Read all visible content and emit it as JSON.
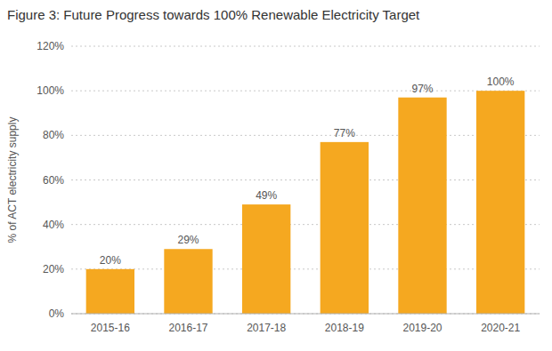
{
  "chart_data": {
    "type": "bar",
    "title": "Figure 3:  Future Progress towards 100% Renewable Electricity Target",
    "categories": [
      "2015-16",
      "2016-17",
      "2017-18",
      "2018-19",
      "2019-20",
      "2020-21"
    ],
    "values": [
      20,
      29,
      49,
      77,
      97,
      100
    ],
    "value_labels": [
      "20%",
      "29%",
      "49%",
      "77%",
      "97%",
      "100%"
    ],
    "data_labels": true,
    "color": "#F5A820",
    "ylabel": "% of ACT electricity supply",
    "ylim": [
      0,
      120
    ],
    "yticks": [
      {
        "value": 0,
        "label": "0%"
      },
      {
        "value": 20,
        "label": "20%"
      },
      {
        "value": 40,
        "label": "40%"
      },
      {
        "value": 60,
        "label": "60%"
      },
      {
        "value": 80,
        "label": "80%"
      },
      {
        "value": 100,
        "label": "100%"
      },
      {
        "value": 120,
        "label": "120%"
      }
    ],
    "grid": true
  }
}
